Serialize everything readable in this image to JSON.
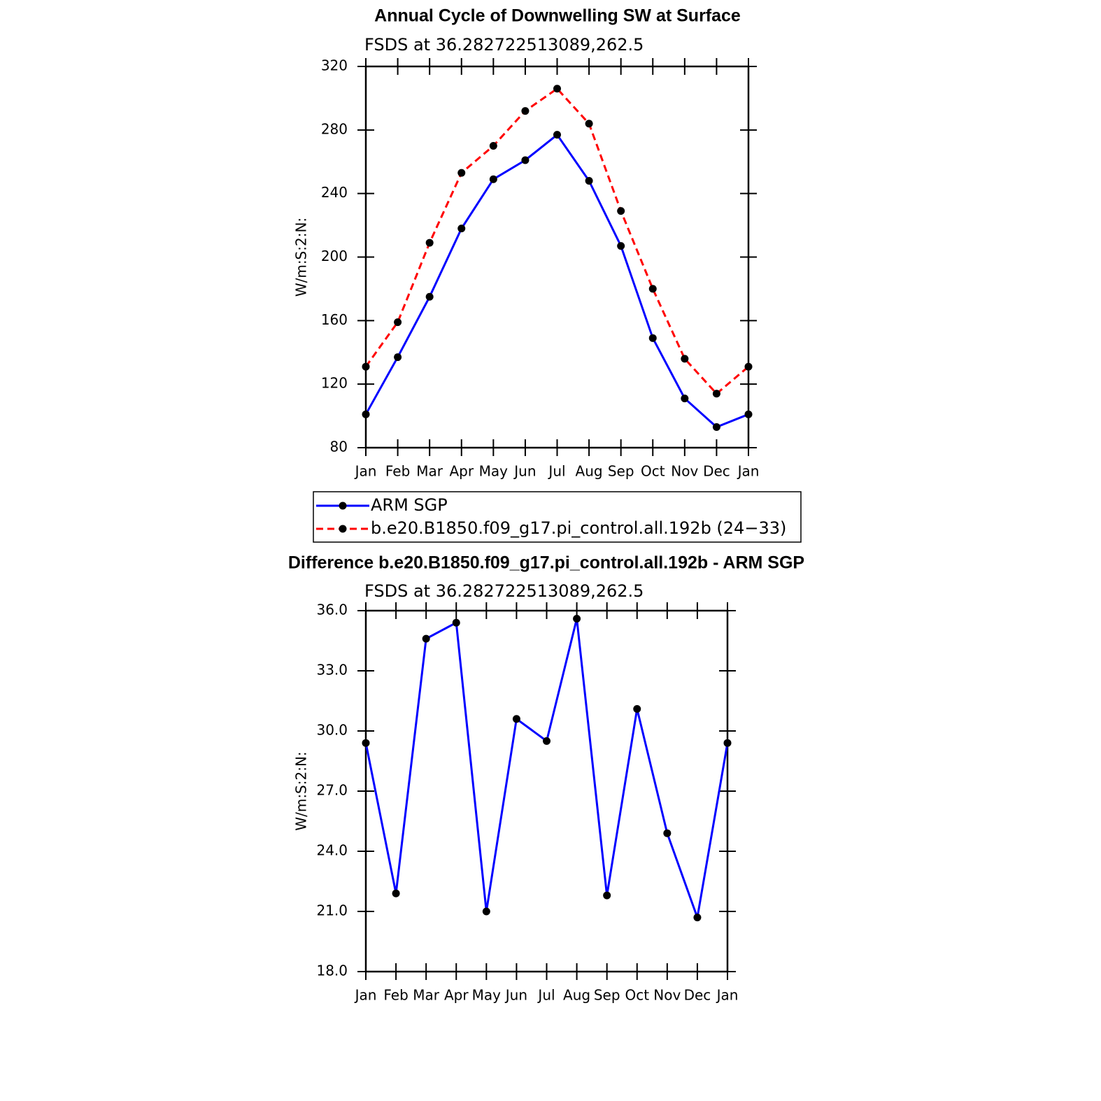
{
  "chart_data": [
    {
      "type": "line",
      "title": "Annual Cycle of Downwelling SW at Surface",
      "subtitle": "FSDS at 36.282722513089,262.5",
      "ylabel": "W/m:S:2:N:",
      "categories": [
        "Jan",
        "Feb",
        "Mar",
        "Apr",
        "May",
        "Jun",
        "Jul",
        "Aug",
        "Sep",
        "Oct",
        "Nov",
        "Dec",
        "Jan"
      ],
      "series": [
        {
          "name": "ARM SGP",
          "color": "#0000ff",
          "marker_color": "#000000",
          "line_style": "solid",
          "values": [
            101,
            137,
            175,
            218,
            249,
            261,
            277,
            248,
            207,
            149,
            111,
            93,
            101
          ]
        },
        {
          "name": "b.e20.B1850.f09_g17.pi_control.all.192b (24−33)",
          "color": "#ff0000",
          "marker_color": "#000000",
          "line_style": "dashed",
          "values": [
            131,
            159,
            209,
            253,
            270,
            292,
            306,
            284,
            229,
            180,
            136,
            114,
            131
          ]
        }
      ],
      "ylim": [
        80,
        320
      ],
      "yticks": [
        80,
        120,
        160,
        200,
        240,
        280,
        320
      ],
      "legend": "below"
    },
    {
      "type": "line",
      "title": "Difference b.e20.B1850.f09_g17.pi_control.all.192b - ARM SGP",
      "subtitle": "FSDS at 36.282722513089,262.5",
      "ylabel": "W/m:S:2:N:",
      "categories": [
        "Jan",
        "Feb",
        "Mar",
        "Apr",
        "May",
        "Jun",
        "Jul",
        "Aug",
        "Sep",
        "Oct",
        "Nov",
        "Dec",
        "Jan"
      ],
      "series": [
        {
          "color": "#0000ff",
          "marker_color": "#000000",
          "line_style": "solid",
          "values": [
            29.4,
            21.9,
            34.6,
            35.4,
            21.0,
            30.6,
            29.5,
            35.6,
            21.8,
            31.1,
            24.9,
            20.7,
            29.4
          ]
        }
      ],
      "ylim": [
        18,
        36
      ],
      "yticks": [
        {
          "value": 18,
          "label": "18.0"
        },
        {
          "value": 21,
          "label": "21.0"
        },
        {
          "value": 24,
          "label": "24.0"
        },
        {
          "value": 27,
          "label": "27.0"
        },
        {
          "value": 30,
          "label": "30.0"
        },
        {
          "value": 33,
          "label": "33.0"
        },
        {
          "value": 36,
          "label": "36.0"
        }
      ]
    }
  ]
}
